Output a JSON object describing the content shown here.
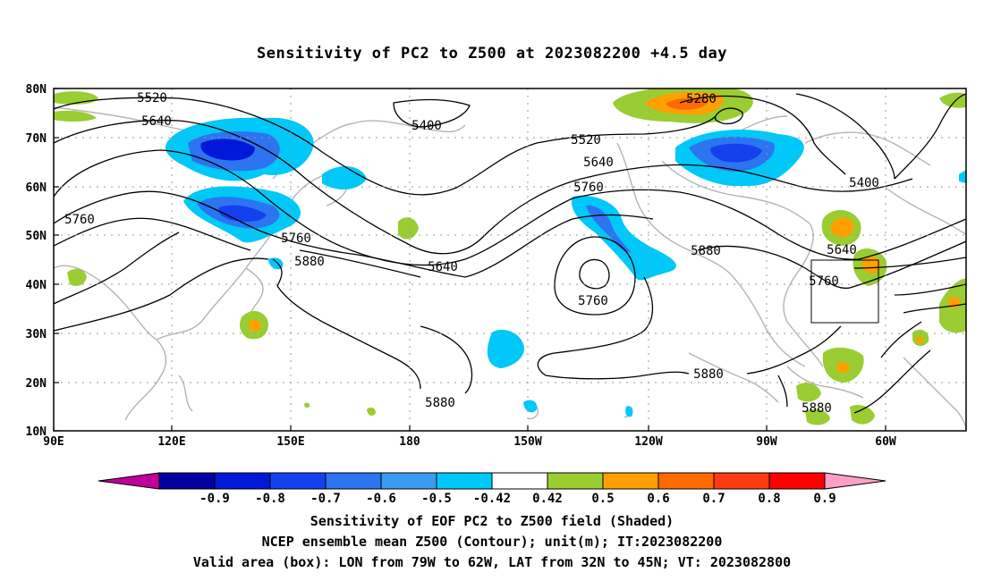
{
  "title": "Sensitivity of PC2 to Z500 at 2023082200 +4.5 day",
  "lat_labels": [
    "80N",
    "70N",
    "60N",
    "50N",
    "40N",
    "30N",
    "20N",
    "10N"
  ],
  "lon_labels": [
    "90E",
    "120E",
    "150E",
    "180",
    "150W",
    "120W",
    "90W",
    "60W"
  ],
  "contour_labels": [
    {
      "text": "5520"
    },
    {
      "text": "5640"
    },
    {
      "text": "5400"
    },
    {
      "text": "5280"
    },
    {
      "text": "5520"
    },
    {
      "text": "5640"
    },
    {
      "text": "5760"
    },
    {
      "text": "5400"
    },
    {
      "text": "5760"
    },
    {
      "text": "5760"
    },
    {
      "text": "5880"
    },
    {
      "text": "5640"
    },
    {
      "text": "5760"
    },
    {
      "text": "5880"
    },
    {
      "text": "5640"
    },
    {
      "text": "5760"
    },
    {
      "text": "5880"
    },
    {
      "text": "5880"
    },
    {
      "text": "5880"
    }
  ],
  "colorbar": {
    "labels": [
      "-0.9",
      "-0.8",
      "-0.7",
      "-0.6",
      "-0.5",
      "-0.42",
      "0.42",
      "0.5",
      "0.6",
      "0.7",
      "0.8",
      "0.9"
    ],
    "colors": [
      "#c0009a",
      "#0000a0",
      "#0018d8",
      "#1440f0",
      "#2c74f0",
      "#3a9cf0",
      "#00c8f8",
      "#ffffff",
      "#9acd32",
      "#ffa000",
      "#ff6a00",
      "#ff3a10",
      "#ff0000",
      "#ff9fc8"
    ]
  },
  "box": {
    "label": "Valid area",
    "lon_from": "79W",
    "lon_to": "62W",
    "lat_from": "32N",
    "lat_to": "45N"
  },
  "captions": [
    "Sensitivity of EOF PC2 to Z500 field (Shaded)",
    "NCEP ensemble mean Z500 (Contour); unit(m); IT:2023082200",
    "Valid area (box): LON from 79W to 62W, LAT from 32N to 45N; VT: 2023082800"
  ]
}
